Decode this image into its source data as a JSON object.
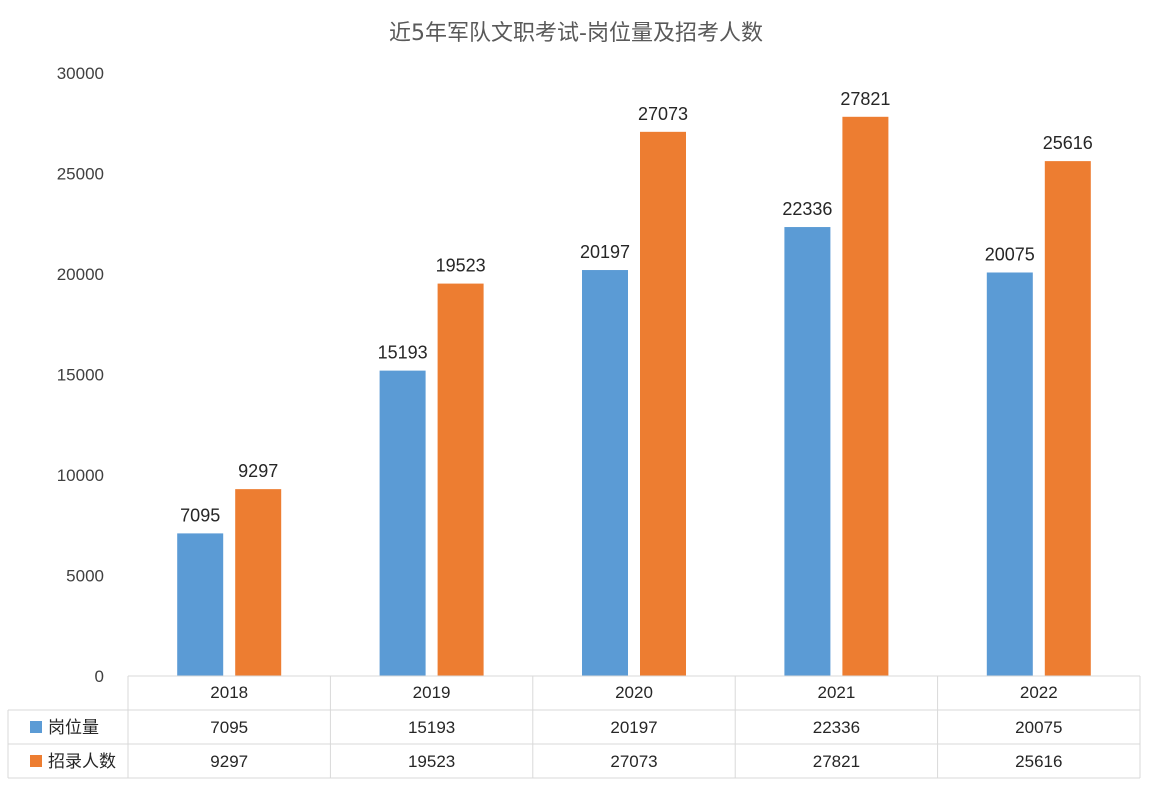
{
  "chart_data": {
    "type": "bar",
    "title": "近5年军队文职考试-岗位量及招考人数",
    "categories": [
      "2018",
      "2019",
      "2020",
      "2021",
      "2022"
    ],
    "series": [
      {
        "name": "岗位量",
        "color": "#5b9bd5",
        "values": [
          7095,
          15193,
          20197,
          22336,
          20075
        ]
      },
      {
        "name": "招录人数",
        "color": "#ed7d31",
        "values": [
          9297,
          19523,
          27073,
          27821,
          25616
        ]
      }
    ],
    "ylim": [
      0,
      30000
    ],
    "yticks": [
      "0",
      "5000",
      "10000",
      "15000",
      "20000",
      "25000",
      "30000"
    ],
    "data_table": true,
    "legend": "in-table",
    "grid": false
  }
}
